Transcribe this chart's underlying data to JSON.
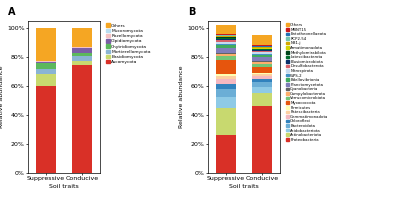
{
  "panel_A": {
    "categories": [
      "Suppressive",
      "Conducive"
    ],
    "labels": [
      "Ascomycota",
      "Basidiomycota",
      "Mortierellomycota",
      "Chytridiomycota",
      "Olpidiomycota",
      "Rozellomycota",
      "Mucoromycota",
      "Others"
    ],
    "colors": [
      "#d93027",
      "#c8d96f",
      "#8ab4d4",
      "#5cb85c",
      "#7b5ea7",
      "#f4c2c2",
      "#b8ddf0",
      "#f5a623"
    ],
    "suppressive": [
      0.6,
      0.085,
      0.03,
      0.04,
      0.012,
      0.004,
      0.004,
      0.225
    ],
    "conducive": [
      0.745,
      0.03,
      0.035,
      0.015,
      0.038,
      0.004,
      0.004,
      0.129
    ]
  },
  "panel_B": {
    "categories": [
      "Suppressive",
      "Conducive"
    ],
    "labels": [
      "Proteobacteria",
      "Actinobacteriota",
      "Acidobacteriota",
      "Bacteroidota",
      "Chloroflexi",
      "Gemmatimonadota",
      "Patescibacteria",
      "Firmicutes",
      "Myxococcota",
      "Verrucomicrobiota",
      "Campylobacterota",
      "Cyanobacteria",
      "Planctomycetota",
      "Bdellovibrionia",
      "WPS-2",
      "Nitrospirota",
      "Desulfobacterota",
      "Elusiomicrobiota",
      "Latescibacterota",
      "Methylomirabilota",
      "Armatimonadota",
      "NB1-j",
      "RCP2-54",
      "Entotheonellaeota",
      "MBNT15",
      "Others"
    ],
    "colors": [
      "#d93027",
      "#c8d96f",
      "#8ecae6",
      "#6baed6",
      "#3182bd",
      "#f4b8c1",
      "#fdd0a2",
      "#ffffb2",
      "#e6550d",
      "#74c476",
      "#fdae6b",
      "#636363",
      "#807dba",
      "#41ab5d",
      "#4292c6",
      "#c6dbef",
      "#d6616b",
      "#08306b",
      "#006d2c",
      "#00441b",
      "#d4d400",
      "#d4a800",
      "#74c4b0",
      "#2171b5",
      "#cb181d",
      "#f5a623"
    ],
    "suppressive": [
      0.26,
      0.185,
      0.075,
      0.055,
      0.04,
      0.03,
      0.02,
      0.015,
      0.1,
      0.025,
      0.015,
      0.01,
      0.03,
      0.02,
      0.01,
      0.015,
      0.01,
      0.01,
      0.005,
      0.005,
      0.005,
      0.005,
      0.005,
      0.005,
      0.005,
      0.06
    ],
    "conducive": [
      0.46,
      0.09,
      0.045,
      0.03,
      0.025,
      0.02,
      0.01,
      0.01,
      0.04,
      0.02,
      0.015,
      0.008,
      0.025,
      0.015,
      0.008,
      0.01,
      0.008,
      0.008,
      0.005,
      0.005,
      0.005,
      0.005,
      0.005,
      0.005,
      0.005,
      0.07
    ]
  },
  "ylabel": "Relative abundance",
  "xlabel": "Soil traits",
  "ytick_labels": [
    "0%",
    "20%",
    "40%",
    "60%",
    "80%",
    "100%"
  ],
  "ytick_vals": [
    0.0,
    0.2,
    0.4,
    0.6,
    0.8,
    1.0
  ]
}
